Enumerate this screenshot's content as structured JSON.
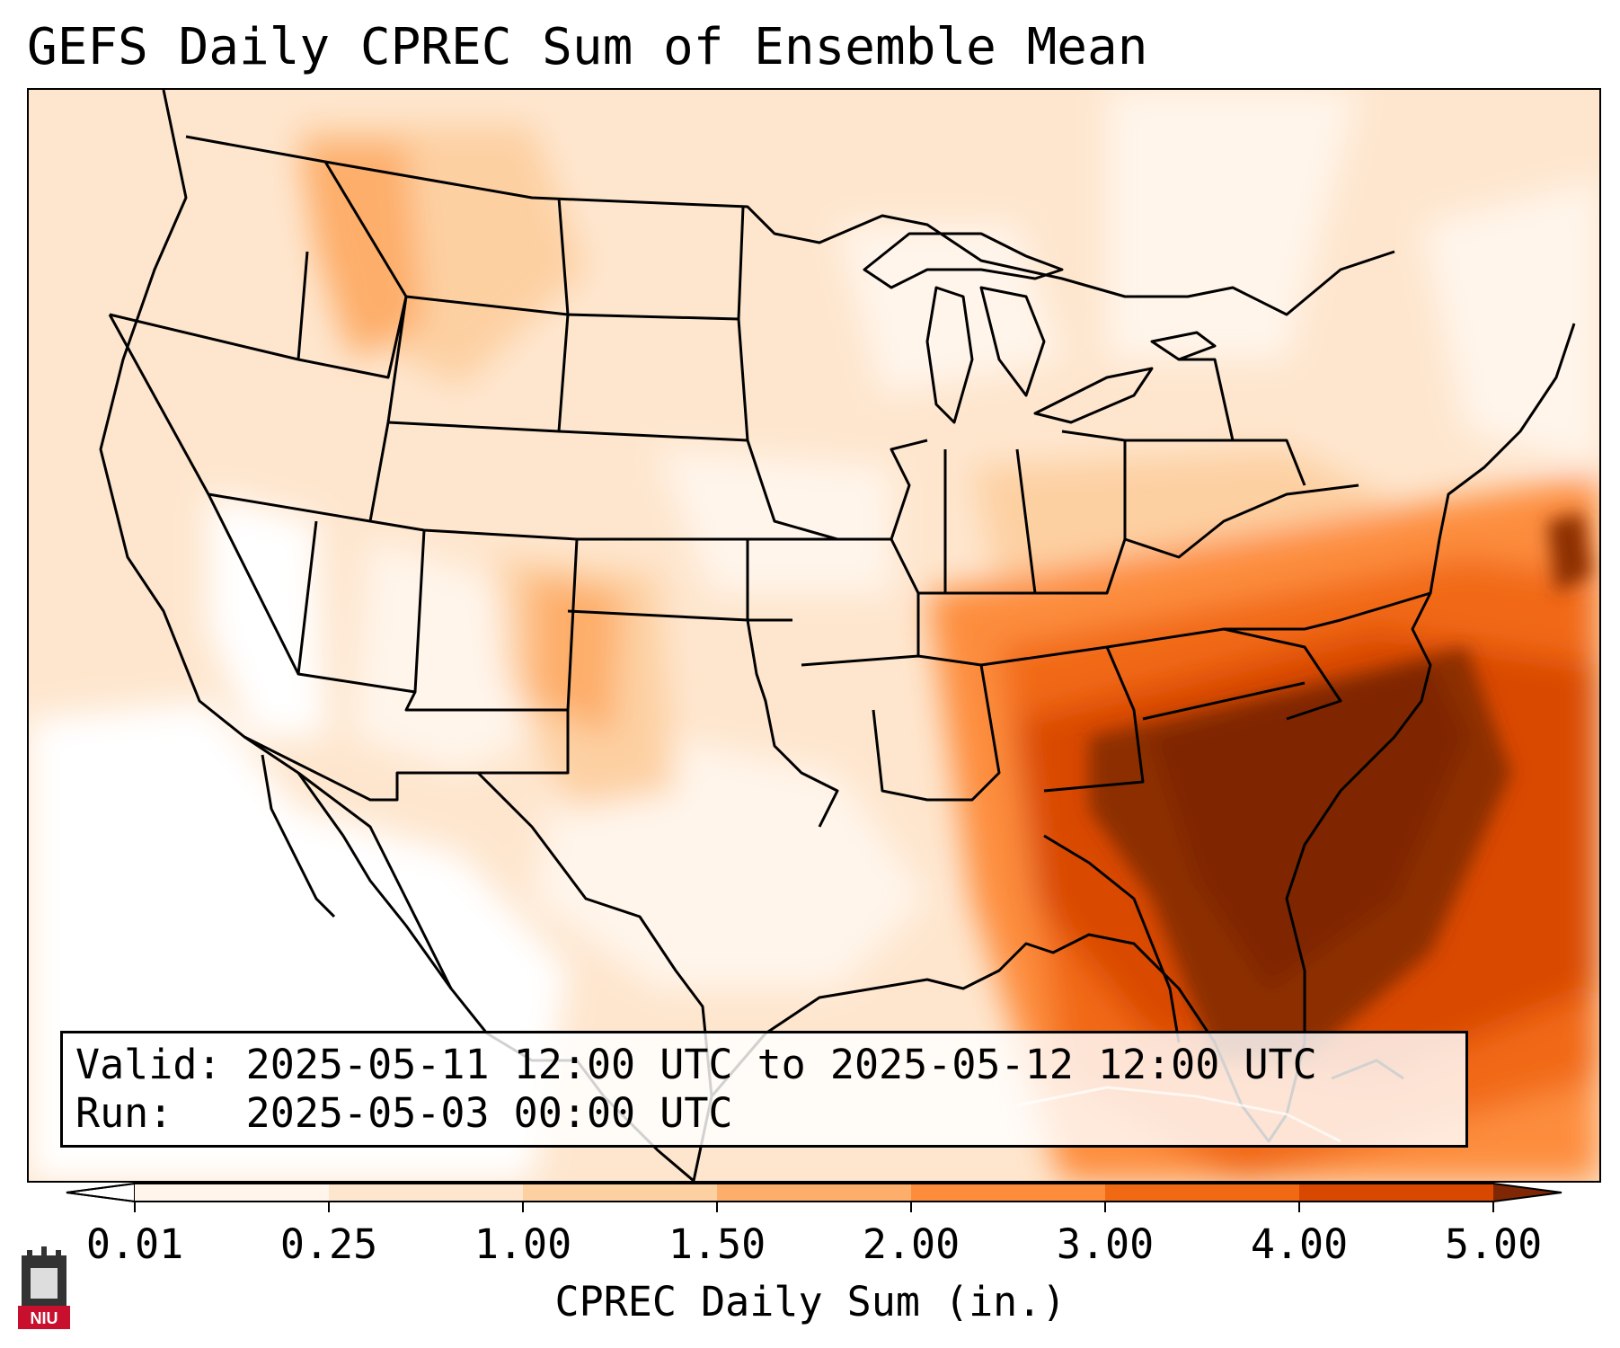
{
  "title": "GEFS Daily CPREC Sum of Ensemble Mean",
  "info": {
    "valid_label": "Valid:",
    "valid_value": "2025-05-11 12:00 UTC to 2025-05-12 12:00 UTC",
    "run_label": "Run:",
    "run_value": "2025-05-03 00:00 UTC"
  },
  "colorbar": {
    "label": "CPREC Daily Sum (in.)",
    "ticks": [
      "0.01",
      "0.25",
      "1.00",
      "1.50",
      "2.00",
      "3.00",
      "4.00",
      "5.00"
    ],
    "colors": [
      "#fff5eb",
      "#fee6ce",
      "#fdd0a2",
      "#fdae6b",
      "#fd8d3c",
      "#f16913",
      "#d94801",
      "#8c2d04"
    ],
    "under_color": "#ffffff",
    "over_color": "#7f2704"
  },
  "logo": {
    "text": "NIU",
    "color": "#c8102e"
  }
}
